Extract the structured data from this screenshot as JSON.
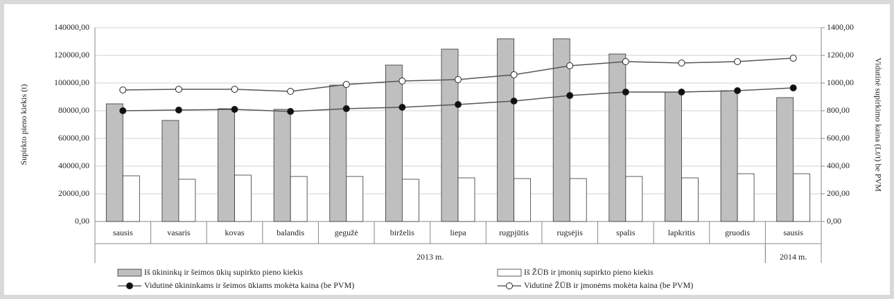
{
  "chart_data": {
    "type": "bar",
    "groups": [
      {
        "label": "2013 m.",
        "categories": [
          "sausis",
          "vasaris",
          "kovas",
          "balandis",
          "gegužė",
          "birželis",
          "liepa",
          "rugpjūtis",
          "rugsėjis",
          "spalis",
          "lapkritis",
          "gruodis"
        ]
      },
      {
        "label": "2014 m.",
        "categories": [
          "sausis"
        ]
      }
    ],
    "y_label": "Supirkto pieno kiekis (t)",
    "y2_label": "Vidutinė supirkimo kaina (Lt/t) be PVM",
    "ylim": [
      0,
      140000
    ],
    "yticks": [
      {
        "value": 0,
        "label": "0,00"
      },
      {
        "value": 20000,
        "label": "20000,00"
      },
      {
        "value": 40000,
        "label": "40000,00"
      },
      {
        "value": 60000,
        "label": "60000,00"
      },
      {
        "value": 80000,
        "label": "80000,00"
      },
      {
        "value": 100000,
        "label": "100000,00"
      },
      {
        "value": 120000,
        "label": "120000,00"
      },
      {
        "value": 140000,
        "label": "140000,00"
      }
    ],
    "y2lim": [
      0,
      1400
    ],
    "y2ticks": [
      {
        "value": 0,
        "label": "0,00"
      },
      {
        "value": 200,
        "label": "200,00"
      },
      {
        "value": 400,
        "label": "400,00"
      },
      {
        "value": 600,
        "label": "600,00"
      },
      {
        "value": 800,
        "label": "800,00"
      },
      {
        "value": 1000,
        "label": "1000,00"
      },
      {
        "value": 1200,
        "label": "1200,00"
      },
      {
        "value": 1400,
        "label": "1400,00"
      }
    ],
    "grid": true,
    "series": [
      {
        "name": "Iš ūkininkų ir šeimos ūkių supirkto pieno kiekis",
        "type": "bar",
        "color": "#bfbfbf",
        "values": [
          85000,
          73000,
          81500,
          81000,
          98500,
          113000,
          124500,
          132000,
          132000,
          121000,
          93500,
          94500,
          89500
        ]
      },
      {
        "name": "Iš ŽŪB ir įmonių supirkto pieno kiekis",
        "type": "bar",
        "color": "#ffffff",
        "values": [
          33000,
          30500,
          33500,
          32500,
          32500,
          30500,
          31500,
          31000,
          31000,
          32500,
          31500,
          34500,
          34500
        ]
      },
      {
        "name": "Vidutinė ūkininkams ir šeimos ūkiams mokėta kaina (be PVM)",
        "type": "line",
        "axis": "y2",
        "color": "#111111",
        "values": [
          800,
          805,
          810,
          795,
          815,
          825,
          845,
          870,
          910,
          935,
          935,
          945,
          965
        ]
      },
      {
        "name": "Vidutinė ŽŪB ir įmonėms mokėta kaina (be PVM)",
        "type": "line",
        "axis": "y2",
        "color": "#ffffff",
        "values": [
          950,
          955,
          955,
          940,
          990,
          1015,
          1025,
          1060,
          1125,
          1155,
          1145,
          1155,
          1180
        ]
      }
    ]
  }
}
